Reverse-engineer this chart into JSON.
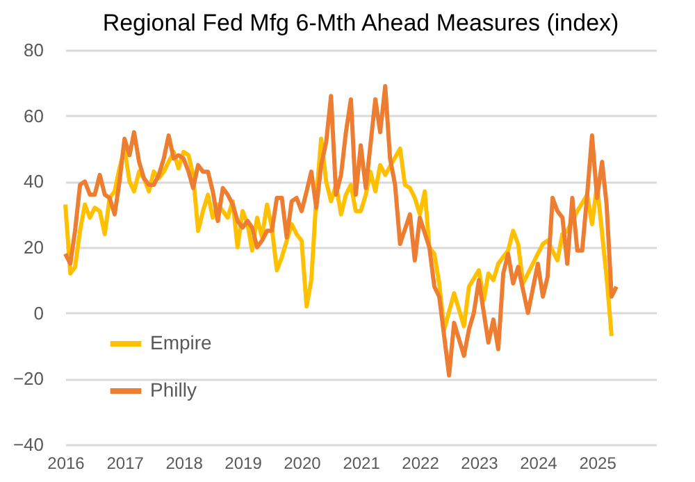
{
  "chart_data": {
    "type": "line",
    "title": "Regional Fed Mfg 6-Mth Ahead Measures (index)",
    "xlim": [
      "2016-01",
      "2026-01"
    ],
    "xticks": [
      "2016",
      "2017",
      "2018",
      "2019",
      "2020",
      "2021",
      "2022",
      "2023",
      "2024",
      "2025"
    ],
    "ylim": [
      -40,
      80
    ],
    "yticks": [
      -40,
      -20,
      0,
      20,
      40,
      60,
      80
    ],
    "grid": "y",
    "legend": "bottom left",
    "marker": "none",
    "line_style": "solid",
    "series": [
      {
        "name": "Empire",
        "color": "#ffc000",
        "x": [
          "2016-01",
          "2016-02",
          "2016-03",
          "2016-04",
          "2016-05",
          "2016-06",
          "2016-07",
          "2016-08",
          "2016-09",
          "2016-10",
          "2016-11",
          "2016-12",
          "2017-01",
          "2017-02",
          "2017-03",
          "2017-04",
          "2017-05",
          "2017-06",
          "2017-07",
          "2017-08",
          "2017-09",
          "2017-10",
          "2017-11",
          "2017-12",
          "2018-01",
          "2018-02",
          "2018-03",
          "2018-04",
          "2018-05",
          "2018-06",
          "2018-07",
          "2018-08",
          "2018-09",
          "2018-10",
          "2018-11",
          "2018-12",
          "2019-01",
          "2019-02",
          "2019-03",
          "2019-04",
          "2019-05",
          "2019-06",
          "2019-07",
          "2019-08",
          "2019-09",
          "2019-10",
          "2019-11",
          "2019-12",
          "2020-01",
          "2020-02",
          "2020-03",
          "2020-04",
          "2020-05",
          "2020-06",
          "2020-07",
          "2020-08",
          "2020-09",
          "2020-10",
          "2020-11",
          "2020-12",
          "2021-01",
          "2021-02",
          "2021-03",
          "2021-04",
          "2021-05",
          "2021-06",
          "2021-09",
          "2021-10",
          "2021-11",
          "2021-12",
          "2022-01",
          "2022-02",
          "2022-03",
          "2022-04",
          "2022-05",
          "2022-06",
          "2022-08",
          "2022-10",
          "2022-11",
          "2023-01",
          "2023-02",
          "2023-03",
          "2023-04",
          "2023-05",
          "2023-07",
          "2023-08",
          "2023-09",
          "2023-10",
          "2024-01",
          "2024-02",
          "2024-03",
          "2024-05",
          "2024-06",
          "2024-07",
          "2024-09",
          "2024-11",
          "2024-12",
          "2025-01",
          "2025-03",
          "2025-04"
        ],
        "values": [
          33,
          12,
          14,
          25,
          33,
          29,
          32,
          31,
          24,
          35,
          37,
          44,
          50,
          40,
          37,
          43,
          41,
          37,
          43,
          41,
          43,
          46,
          49,
          44,
          49,
          48,
          42,
          25,
          31,
          36,
          29,
          33,
          31,
          29,
          34,
          20,
          31,
          27,
          19,
          29,
          23,
          33,
          26,
          13,
          17,
          22,
          27,
          24,
          22,
          2,
          10,
          35,
          53,
          40,
          34,
          39,
          30,
          36,
          39,
          31,
          31,
          36,
          43,
          37,
          45,
          42,
          50,
          39,
          38,
          35,
          30,
          37,
          20,
          18,
          9,
          -5,
          6,
          -4,
          8,
          13,
          4,
          12,
          10,
          15,
          19,
          25,
          21,
          9,
          18,
          21,
          22,
          16,
          24,
          25,
          31,
          36,
          27,
          39,
          11,
          -7
        ]
      },
      {
        "name": "Philly",
        "color": "#ed7d31",
        "x": [
          "2016-01",
          "2016-02",
          "2016-03",
          "2016-04",
          "2016-05",
          "2016-06",
          "2016-07",
          "2016-08",
          "2016-09",
          "2016-10",
          "2016-11",
          "2016-12",
          "2017-01",
          "2017-02",
          "2017-03",
          "2017-04",
          "2017-05",
          "2017-06",
          "2017-07",
          "2017-08",
          "2017-09",
          "2017-10",
          "2017-11",
          "2017-12",
          "2018-01",
          "2018-02",
          "2018-03",
          "2018-04",
          "2018-05",
          "2018-06",
          "2018-07",
          "2018-08",
          "2018-09",
          "2018-10",
          "2018-11",
          "2018-12",
          "2019-01",
          "2019-02",
          "2019-03",
          "2019-04",
          "2019-05",
          "2019-06",
          "2019-07",
          "2019-08",
          "2019-09",
          "2019-10",
          "2019-11",
          "2019-12",
          "2020-01",
          "2020-02",
          "2020-03",
          "2020-04",
          "2020-05",
          "2020-06",
          "2020-07",
          "2020-08",
          "2020-09",
          "2020-10",
          "2020-11",
          "2020-12",
          "2021-01",
          "2021-02",
          "2021-04",
          "2021-05",
          "2021-06",
          "2021-07",
          "2021-08",
          "2021-09",
          "2021-11",
          "2021-12",
          "2022-01",
          "2022-03",
          "2022-04",
          "2022-05",
          "2022-07",
          "2022-08",
          "2022-10",
          "2022-11",
          "2022-12",
          "2023-01",
          "2023-03",
          "2023-04",
          "2023-05",
          "2023-06",
          "2023-07",
          "2023-08",
          "2023-09",
          "2023-11",
          "2024-01",
          "2024-02",
          "2024-03",
          "2024-04",
          "2024-05",
          "2024-06",
          "2024-07",
          "2024-08",
          "2024-09",
          "2024-10",
          "2024-11",
          "2024-12",
          "2025-01",
          "2025-02",
          "2025-03",
          "2025-04",
          "2025-05"
        ],
        "values": [
          18,
          15,
          25,
          39,
          40,
          36,
          36,
          42,
          36,
          35,
          30,
          40,
          53,
          48,
          55,
          46,
          41,
          39,
          39,
          42,
          47,
          54,
          47,
          48,
          47,
          43,
          38,
          45,
          43,
          43,
          37,
          28,
          38,
          36,
          33,
          28,
          26,
          28,
          26,
          20,
          22,
          25,
          25,
          35,
          35,
          23,
          34,
          35,
          31,
          37,
          43,
          32,
          45,
          52,
          66,
          36,
          42,
          55,
          65,
          36,
          51,
          38,
          65,
          55,
          69,
          47,
          39,
          21,
          30,
          16,
          29,
          20,
          8,
          5,
          -19,
          -3,
          -13,
          -5,
          0,
          10,
          -9,
          -2,
          -11,
          12,
          18,
          9,
          14,
          0,
          15,
          5,
          11,
          35,
          31,
          29,
          15,
          35,
          19,
          19,
          36,
          54,
          35,
          46,
          33,
          5,
          8
        ]
      }
    ]
  }
}
